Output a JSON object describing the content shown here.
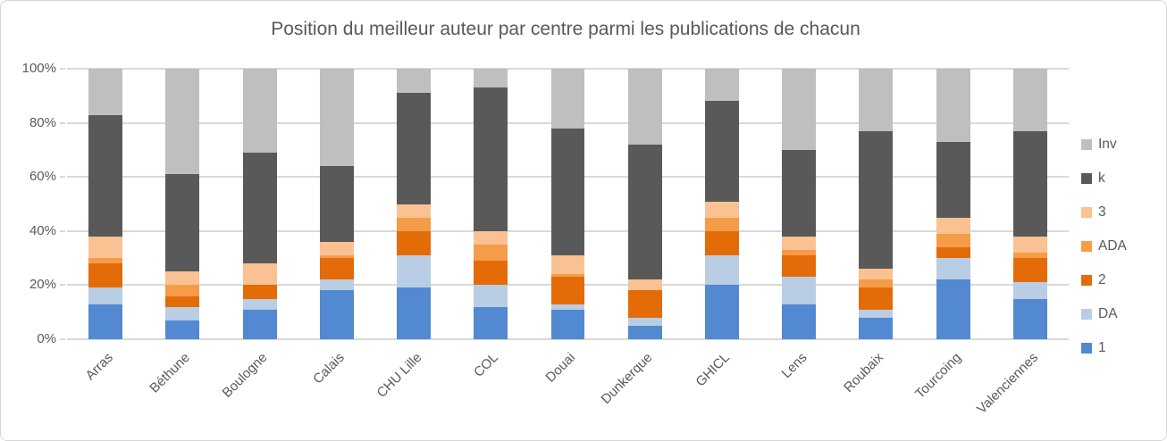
{
  "chart_data": {
    "type": "bar",
    "variant": "stacked-100-percent-column",
    "title": "Position du meilleur auteur par centre parmi les publications de chacun",
    "xlabel": "",
    "ylabel": "",
    "ylim": [
      0,
      100
    ],
    "ytick_labels": [
      "0%",
      "20%",
      "40%",
      "60%",
      "80%",
      "100%"
    ],
    "ytick_values": [
      0,
      20,
      40,
      60,
      80,
      100
    ],
    "grid": "horizontal",
    "legend_position": "right",
    "legend_top_to_bottom": [
      "Inv",
      "k",
      "3",
      "ADA",
      "2",
      "DA",
      "1"
    ],
    "categories": [
      "Arras",
      "Béthune",
      "Boulogne",
      "Calais",
      "CHU Lille",
      "COL",
      "Douai",
      "Dunkerque",
      "GHICL",
      "Lens",
      "Roubaix",
      "Tourcoing",
      "Valenciennes"
    ],
    "series_bottom_to_top": [
      {
        "name": "1",
        "color": "#5289D0",
        "values": [
          13,
          7,
          11,
          18,
          19,
          12,
          11,
          5,
          20,
          13,
          8,
          22,
          15
        ]
      },
      {
        "name": "DA",
        "color": "#B9CDE5",
        "values": [
          6,
          5,
          4,
          4,
          12,
          8,
          2,
          3,
          11,
          10,
          3,
          8,
          6
        ]
      },
      {
        "name": "2",
        "color": "#E36C09",
        "values": [
          9,
          4,
          5,
          8,
          9,
          9,
          10,
          10,
          9,
          8,
          8,
          4,
          9
        ]
      },
      {
        "name": "ADA",
        "color": "#F59C49",
        "values": [
          2,
          4,
          0,
          1,
          5,
          6,
          1,
          0,
          5,
          2,
          3,
          5,
          2
        ]
      },
      {
        "name": "3",
        "color": "#FAC292",
        "values": [
          8,
          5,
          8,
          5,
          5,
          5,
          7,
          4,
          6,
          5,
          4,
          6,
          6
        ]
      },
      {
        "name": "k",
        "color": "#595959",
        "values": [
          45,
          36,
          41,
          28,
          41,
          53,
          47,
          50,
          37,
          32,
          51,
          28,
          39
        ]
      },
      {
        "name": "Inv",
        "color": "#BFBFBF",
        "values": [
          17,
          39,
          31,
          36,
          9,
          7,
          22,
          28,
          12,
          30,
          23,
          27,
          23
        ]
      }
    ],
    "colors": {
      "gridline": "#D9D9D9",
      "text": "#595959",
      "background": "#FFFFFF"
    },
    "units": "percent"
  }
}
